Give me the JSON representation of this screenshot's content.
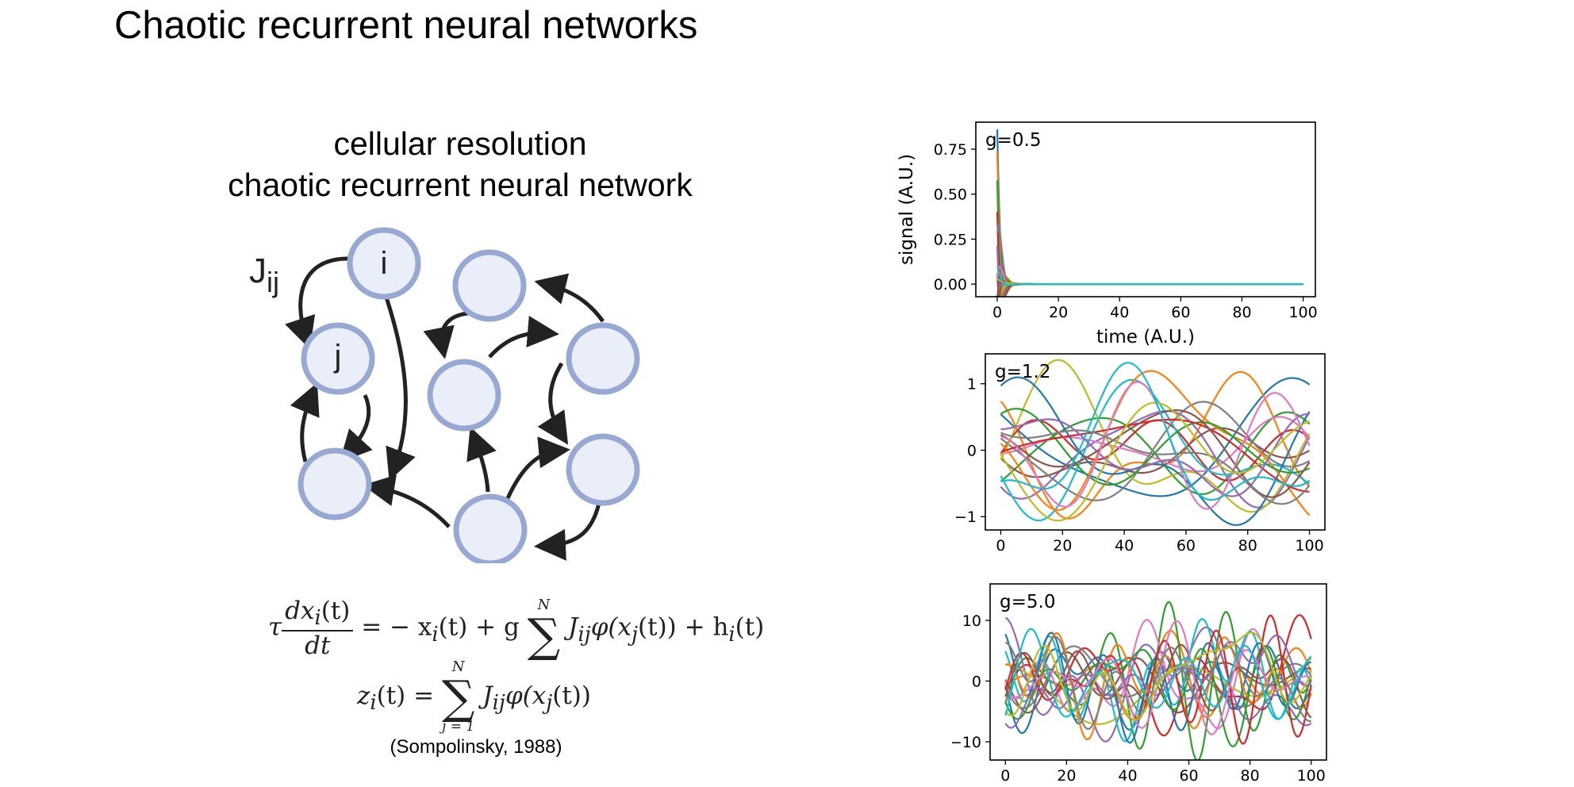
{
  "slide": {
    "title": "Chaotic recurrent neural networks"
  },
  "diagram": {
    "heading_line1": "cellular resolution",
    "heading_line2": "chaotic recurrent neural network",
    "node_i": "i",
    "node_j": "j",
    "weight_label_base": "J",
    "weight_label_sub": "ij",
    "node_fill": "#eaeef8",
    "node_stroke": "#97a9d3",
    "arrow_color": "#222222"
  },
  "equations": {
    "tau": "τ",
    "d_num": "dx",
    "d_num_sub": "i",
    "d_num_tail": "(t)",
    "d_den": "dt",
    "eq1_rhs_a": "=  − x",
    "eq1_rhs_a_sub": "i",
    "eq1_rhs_b": "(t) + g",
    "sum_top": "N",
    "sum_bot": "",
    "J": "J",
    "J_sub": "ij",
    "phi": "φ(x",
    "phi_sub": "j",
    "phi_tail": "(t)) +  h",
    "h_sub": "i",
    "h_tail": "(t)",
    "z": "z",
    "z_sub": "i",
    "z_mid": "(t)  =",
    "sum2_top": "N",
    "sum2_bot": "j = 1",
    "J2": "J",
    "J2_sub": "ij",
    "phi2": "φ(x",
    "phi2_sub": "j",
    "phi2_tail": "(t))",
    "citation": "(Sompolinsky, 1988)"
  },
  "chart_data": [
    {
      "type": "line",
      "annotation": "g=0.5",
      "xlabel": "time (A.U.)",
      "ylabel": "signal (A.U.)",
      "xlim": [
        -7,
        104
      ],
      "ylim": [
        -0.07,
        0.9
      ],
      "xticks": [
        0,
        20,
        40,
        60,
        80,
        100
      ],
      "yticks": [
        0.0,
        0.25,
        0.5,
        0.75
      ],
      "ytick_labels": [
        "0.00",
        "0.25",
        "0.50",
        "0.75"
      ],
      "description_values": "20 series decaying from initial values up to ~0.86 at t=0 to 0.00 by t≈5, flat at 0 until t=100",
      "series_peaks": [
        0.86,
        0.79,
        0.72,
        0.65,
        0.55,
        0.45,
        0.33,
        0.25,
        0.15,
        0.08,
        -0.05,
        0.6,
        0.4,
        0.2,
        0.1,
        0.5,
        0.3,
        0.7,
        0.02,
        0.12
      ]
    },
    {
      "type": "line",
      "annotation": "g=1.2",
      "xlabel": "",
      "ylabel": "",
      "xlim": [
        -5,
        105
      ],
      "ylim": [
        -1.2,
        1.45
      ],
      "xticks": [
        0,
        20,
        40,
        60,
        80,
        100
      ],
      "yticks": [
        -1,
        0,
        1
      ],
      "ytick_labels": [
        "−1",
        "0",
        "1"
      ],
      "n_series": 20,
      "amplitude": 0.75,
      "seed": 12
    },
    {
      "type": "line",
      "annotation": "g=5.0",
      "xlabel": "",
      "ylabel": "",
      "xlim": [
        -5,
        105
      ],
      "ylim": [
        -13,
        16
      ],
      "xticks": [
        0,
        20,
        40,
        60,
        80,
        100
      ],
      "yticks": [
        -10,
        0,
        10
      ],
      "ytick_labels": [
        "−10",
        "0",
        "10"
      ],
      "n_series": 20,
      "amplitude": 6.5,
      "seed": 50
    }
  ],
  "colors": [
    "#1f77b4",
    "#ff7f0e",
    "#2ca02c",
    "#d62728",
    "#9467bd",
    "#8c564b",
    "#e377c2",
    "#7f7f7f",
    "#bcbd22",
    "#17becf"
  ]
}
